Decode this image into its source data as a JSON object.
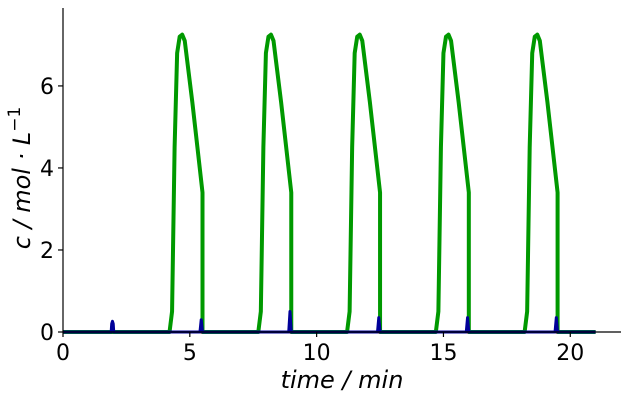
{
  "chart_data": {
    "type": "line",
    "xlabel": "time / min",
    "ylabel": "c / mol · L",
    "ylabel_superscript": "−1",
    "xlim": [
      0,
      22
    ],
    "ylim": [
      0,
      7.9
    ],
    "x_ticks": [
      0,
      5,
      10,
      15,
      20
    ],
    "y_ticks": [
      0,
      2,
      4,
      6
    ],
    "grid": false,
    "legend": "none",
    "series": [
      {
        "color": "#009900",
        "points": [
          [
            0,
            0
          ],
          [
            4.2,
            0
          ],
          [
            4.3,
            0.5
          ],
          [
            4.4,
            4.5
          ],
          [
            4.5,
            6.8
          ],
          [
            4.6,
            7.2
          ],
          [
            4.7,
            7.25
          ],
          [
            4.8,
            7.1
          ],
          [
            4.9,
            6.6
          ],
          [
            5.1,
            5.6
          ],
          [
            5.3,
            4.5
          ],
          [
            5.5,
            3.4
          ],
          [
            5.5,
            0
          ],
          [
            7.7,
            0
          ],
          [
            7.8,
            0.5
          ],
          [
            7.9,
            4.5
          ],
          [
            8.0,
            6.8
          ],
          [
            8.1,
            7.2
          ],
          [
            8.2,
            7.25
          ],
          [
            8.3,
            7.1
          ],
          [
            8.4,
            6.6
          ],
          [
            8.6,
            5.6
          ],
          [
            8.8,
            4.5
          ],
          [
            9.0,
            3.4
          ],
          [
            9.0,
            0
          ],
          [
            11.2,
            0
          ],
          [
            11.3,
            0.5
          ],
          [
            11.4,
            4.5
          ],
          [
            11.5,
            6.8
          ],
          [
            11.6,
            7.2
          ],
          [
            11.7,
            7.25
          ],
          [
            11.8,
            7.1
          ],
          [
            11.9,
            6.6
          ],
          [
            12.1,
            5.6
          ],
          [
            12.3,
            4.5
          ],
          [
            12.5,
            3.4
          ],
          [
            12.5,
            0
          ],
          [
            14.7,
            0
          ],
          [
            14.8,
            0.5
          ],
          [
            14.9,
            4.5
          ],
          [
            15.0,
            6.8
          ],
          [
            15.1,
            7.2
          ],
          [
            15.2,
            7.25
          ],
          [
            15.3,
            7.1
          ],
          [
            15.4,
            6.6
          ],
          [
            15.6,
            5.6
          ],
          [
            15.8,
            4.5
          ],
          [
            16.0,
            3.4
          ],
          [
            16.0,
            0
          ],
          [
            18.2,
            0
          ],
          [
            18.3,
            0.5
          ],
          [
            18.4,
            4.5
          ],
          [
            18.5,
            6.8
          ],
          [
            18.6,
            7.2
          ],
          [
            18.7,
            7.25
          ],
          [
            18.8,
            7.1
          ],
          [
            18.9,
            6.6
          ],
          [
            19.1,
            5.6
          ],
          [
            19.3,
            4.5
          ],
          [
            19.5,
            3.4
          ],
          [
            19.5,
            0
          ],
          [
            21,
            0
          ]
        ]
      },
      {
        "color": "#990000",
        "points": [
          [
            4.4,
            0
          ],
          [
            5.5,
            0
          ],
          [
            5.5,
            0
          ],
          [
            7.9,
            0
          ],
          [
            9.0,
            0
          ],
          [
            11.4,
            0
          ],
          [
            12.5,
            0
          ],
          [
            14.9,
            0
          ],
          [
            16.0,
            0
          ],
          [
            18.4,
            0
          ],
          [
            19.5,
            0
          ]
        ]
      },
      {
        "color": "#000099",
        "points": [
          [
            0,
            0
          ],
          [
            1.9,
            0
          ],
          [
            1.92,
            0.2
          ],
          [
            1.95,
            0.26
          ],
          [
            1.98,
            0.2
          ],
          [
            2.0,
            0
          ],
          [
            5.4,
            0
          ],
          [
            5.45,
            0.3
          ],
          [
            5.5,
            0
          ],
          [
            8.9,
            0
          ],
          [
            8.95,
            0.5
          ],
          [
            9.0,
            0
          ],
          [
            12.4,
            0
          ],
          [
            12.45,
            0.35
          ],
          [
            12.5,
            0
          ],
          [
            15.9,
            0
          ],
          [
            15.95,
            0.35
          ],
          [
            16.0,
            0
          ],
          [
            19.4,
            0
          ],
          [
            19.45,
            0.35
          ],
          [
            19.5,
            0
          ],
          [
            21,
            0
          ]
        ]
      }
    ]
  }
}
